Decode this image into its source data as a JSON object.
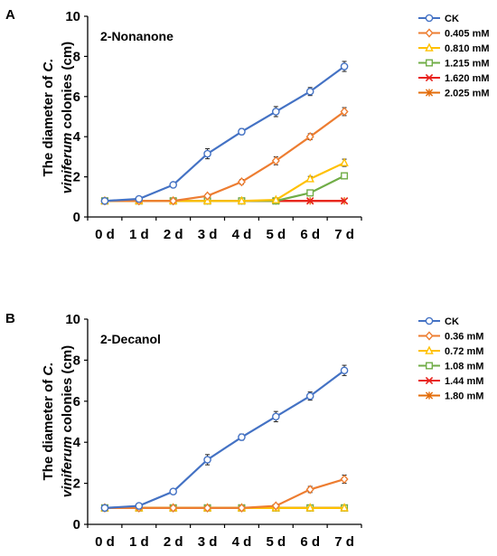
{
  "chart_data": [
    {
      "panel": "A",
      "type": "line",
      "title": "2-Nonanone",
      "ylabel": {
        "prefix": "The diameter of ",
        "italic": "C.",
        "line2_italic": "viniferum",
        "line2_suffix": " colonies (cm)"
      },
      "categories": [
        "0 d",
        "1 d",
        "2 d",
        "3 d",
        "4 d",
        "5 d",
        "6 d",
        "7 d"
      ],
      "ylim": [
        0,
        10
      ],
      "yticks": [
        "0",
        "2",
        "4",
        "6",
        "8",
        "10"
      ],
      "legend_position": "right",
      "series": [
        {
          "name": "CK",
          "color": "#4472C4",
          "marker": "circle",
          "values": [
            0.8,
            0.9,
            1.6,
            3.15,
            4.25,
            5.25,
            6.25,
            7.5
          ],
          "errors": [
            0.05,
            0.05,
            0.12,
            0.25,
            0.15,
            0.25,
            0.2,
            0.25
          ]
        },
        {
          "name": "0.405 mM",
          "color": "#ED7D31",
          "marker": "diamond",
          "values": [
            0.8,
            0.8,
            0.8,
            1.05,
            1.75,
            2.8,
            4.0,
            5.25
          ],
          "errors": [
            0.03,
            0.03,
            0.03,
            0.1,
            0.12,
            0.2,
            0.15,
            0.2
          ]
        },
        {
          "name": "0.810 mM",
          "color": "#FFC000",
          "marker": "triangle",
          "values": [
            0.8,
            0.8,
            0.8,
            0.8,
            0.8,
            0.85,
            1.9,
            2.7
          ],
          "errors": [
            0.03,
            0.03,
            0.03,
            0.03,
            0.03,
            0.05,
            0.12,
            0.18
          ]
        },
        {
          "name": "1.215 mM",
          "color": "#70AD47",
          "marker": "square",
          "values": [
            0.8,
            0.8,
            0.8,
            0.8,
            0.8,
            0.8,
            1.2,
            2.05
          ],
          "errors": [
            0.03,
            0.03,
            0.03,
            0.03,
            0.03,
            0.03,
            0.08,
            0.15
          ]
        },
        {
          "name": "1.620 mM",
          "color": "#E8211C",
          "marker": "cross",
          "values": [
            0.8,
            0.8,
            0.8,
            0.8,
            0.8,
            0.8,
            0.8,
            0.8
          ],
          "errors": [
            0.02,
            0.02,
            0.02,
            0.02,
            0.02,
            0.02,
            0.02,
            0.02
          ]
        },
        {
          "name": "2.025 mM",
          "color": "#E36C0A",
          "marker": "star",
          "values": [
            0.8,
            0.8,
            0.8,
            0.8,
            0.8,
            0.8,
            0.8,
            0.8
          ],
          "errors": [
            0.02,
            0.02,
            0.02,
            0.02,
            0.02,
            0.02,
            0.02,
            0.02
          ]
        }
      ]
    },
    {
      "panel": "B",
      "type": "line",
      "title": "2-Decanol",
      "ylabel": {
        "prefix": "The diameter of ",
        "italic": "C.",
        "line2_italic": "viniferum",
        "line2_suffix": " colonies (cm)"
      },
      "categories": [
        "0 d",
        "1 d",
        "2 d",
        "3 d",
        "4 d",
        "5 d",
        "6 d",
        "7 d"
      ],
      "ylim": [
        0,
        10
      ],
      "yticks": [
        "0",
        "2",
        "4",
        "6",
        "8",
        "10"
      ],
      "legend_position": "right",
      "series": [
        {
          "name": "CK",
          "color": "#4472C4",
          "marker": "circle",
          "values": [
            0.8,
            0.9,
            1.6,
            3.15,
            4.25,
            5.25,
            6.25,
            7.5
          ],
          "errors": [
            0.05,
            0.05,
            0.12,
            0.25,
            0.15,
            0.25,
            0.2,
            0.25
          ]
        },
        {
          "name": "0.36 mM",
          "color": "#ED7D31",
          "marker": "diamond",
          "values": [
            0.8,
            0.8,
            0.8,
            0.8,
            0.8,
            0.9,
            1.7,
            2.2
          ],
          "errors": [
            0.03,
            0.03,
            0.03,
            0.03,
            0.03,
            0.08,
            0.15,
            0.2
          ]
        },
        {
          "name": "0.72 mM",
          "color": "#FFC000",
          "marker": "triangle",
          "values": [
            0.8,
            0.8,
            0.8,
            0.8,
            0.8,
            0.8,
            0.8,
            0.8
          ],
          "errors": [
            0.02,
            0.02,
            0.02,
            0.02,
            0.02,
            0.02,
            0.02,
            0.02
          ]
        },
        {
          "name": "1.08 mM",
          "color": "#70AD47",
          "marker": "square",
          "values": [
            0.8,
            0.8,
            0.8,
            0.8,
            0.8,
            0.8,
            0.8,
            0.8
          ],
          "errors": [
            0.02,
            0.02,
            0.02,
            0.02,
            0.02,
            0.02,
            0.02,
            0.02
          ]
        },
        {
          "name": "1.44 mM",
          "color": "#E8211C",
          "marker": "cross",
          "values": [
            0.8,
            0.8,
            0.8,
            0.8,
            0.8,
            0.8,
            0.8,
            0.8
          ],
          "errors": [
            0.02,
            0.02,
            0.02,
            0.02,
            0.02,
            0.02,
            0.02,
            0.02
          ]
        },
        {
          "name": "1.80 mM",
          "color": "#E36C0A",
          "marker": "star",
          "values": [
            0.8,
            0.8,
            0.8,
            0.8,
            0.8,
            0.8,
            0.8,
            0.8
          ],
          "errors": [
            0.02,
            0.02,
            0.02,
            0.02,
            0.02,
            0.02,
            0.02,
            0.02
          ]
        }
      ]
    }
  ]
}
